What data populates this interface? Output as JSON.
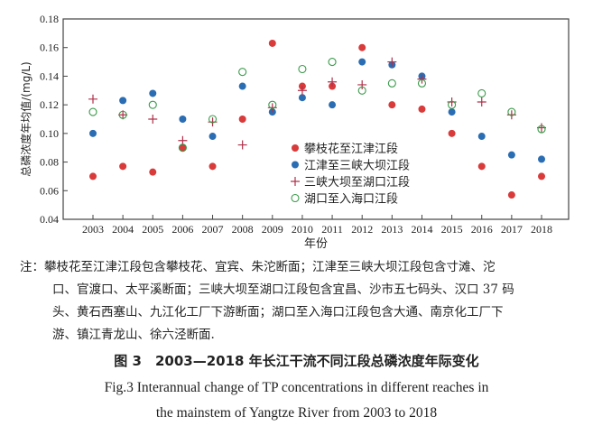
{
  "chart_data": {
    "type": "scatter",
    "xlabel": "年份",
    "ylabel": "总磷浓度年均值/(mg/L)",
    "x": [
      2003,
      2004,
      2005,
      2006,
      2007,
      2008,
      2009,
      2010,
      2011,
      2012,
      2013,
      2014,
      2015,
      2016,
      2017,
      2018
    ],
    "xticks": [
      "2003",
      "2004",
      "2005",
      "2006",
      "2007",
      "2008",
      "2009",
      "2010",
      "2011",
      "2012",
      "2013",
      "2014",
      "2015",
      "2016",
      "2017",
      "2018"
    ],
    "ylim": [
      0.04,
      0.18
    ],
    "yticks": [
      "0.04",
      "0.06",
      "0.08",
      "0.10",
      "0.12",
      "0.14",
      "0.16",
      "0.18"
    ],
    "grid": false,
    "legend_position": "center-right",
    "series": [
      {
        "name": "攀枝花至江津江段",
        "marker": "filled-circle",
        "color": "#d93a3a",
        "values": [
          0.07,
          0.077,
          0.073,
          0.09,
          0.077,
          0.11,
          0.163,
          0.133,
          0.133,
          0.16,
          0.12,
          0.117,
          0.1,
          0.077,
          0.057,
          0.07
        ]
      },
      {
        "name": "江津至三峡大坝江段",
        "marker": "filled-circle",
        "color": "#2a6db3",
        "values": [
          0.1,
          0.123,
          0.128,
          0.11,
          0.098,
          0.133,
          0.115,
          0.125,
          0.12,
          0.15,
          0.148,
          0.14,
          0.115,
          0.098,
          0.085,
          0.082
        ]
      },
      {
        "name": "三峡大坝至湖口江段",
        "marker": "plus",
        "color": "#b0304a",
        "values": [
          0.124,
          0.113,
          0.11,
          0.095,
          0.108,
          0.092,
          0.118,
          0.13,
          0.136,
          0.134,
          0.15,
          0.138,
          0.122,
          0.122,
          0.113,
          0.104
        ]
      },
      {
        "name": "湖口至入海口江段",
        "marker": "open-circle",
        "color": "#3a9a4a",
        "values": [
          0.115,
          0.113,
          0.12,
          0.09,
          0.11,
          0.143,
          0.12,
          0.145,
          0.15,
          0.13,
          0.135,
          0.135,
          0.12,
          0.128,
          0.115,
          0.103
        ]
      }
    ]
  },
  "caption": {
    "note_lines": [
      "注：攀枝花至江津江段包含攀枝花、宜宾、朱沱断面；江津至三峡大坝江段包含寸滩、沱",
      "口、官渡口、太平溪断面；三峡大坝至湖口江段包含宜昌、沙市五七码头、汉口 37 码",
      "头、黄石西塞山、九江化工厂下游断面；湖口至入海口江段包含大通、南京化工厂下",
      "游、镇江青龙山、徐六泾断面."
    ],
    "figure_title": "图 3　2003—2018 年长江干流不同江段总磷浓度年际变化",
    "english_lines": [
      "Fig.3 Interannual change of TP concentrations in different reaches in",
      "the mainstem of Yangtze River from 2003 to 2018"
    ]
  }
}
